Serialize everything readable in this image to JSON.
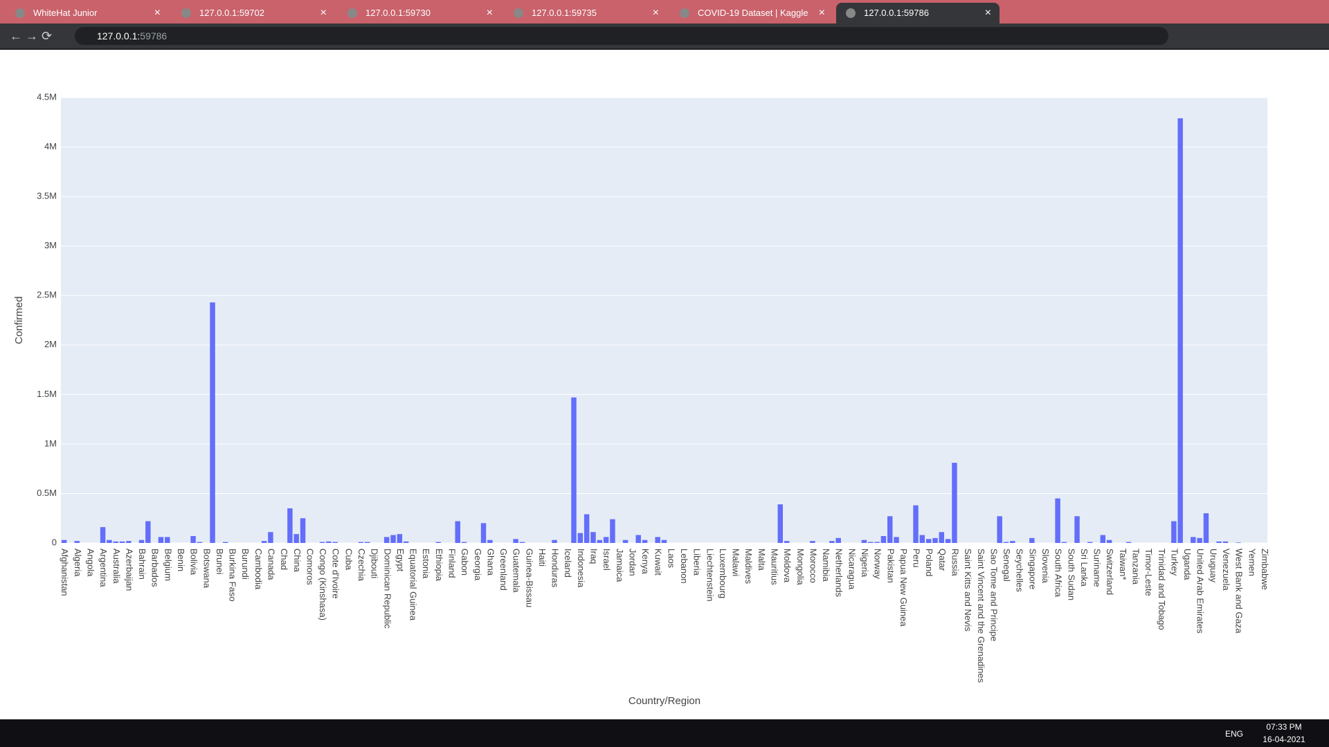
{
  "browser": {
    "tabs": [
      "WhiteHat Junior",
      "127.0.0.1:59702",
      "127.0.0.1:59730",
      "127.0.0.1:59735",
      "COVID-19 Dataset | Kaggle",
      "127.0.0.1:59786"
    ],
    "url_host": "127.0.0.1:",
    "url_port": "59786"
  },
  "taskbar": {
    "language": "ENG",
    "time": "07:33 PM",
    "date": "16-04-2021"
  },
  "chart_data": {
    "type": "bar",
    "color": "#636efa",
    "grid": true,
    "x_label": "Country/Region",
    "y_label": "Confirmed",
    "ylim": [
      0,
      4500000
    ],
    "yticks": [
      0,
      {
        "value": 500000,
        "label": "0.5M"
      },
      {
        "value": 1000000,
        "label": "1M"
      },
      {
        "value": 1500000,
        "label": "1.5M"
      },
      {
        "value": 2000000,
        "label": "2M"
      },
      {
        "value": 2500000,
        "label": "2.5M"
      },
      {
        "value": 3000000,
        "label": "3M"
      },
      {
        "value": 3500000,
        "label": "3.5M"
      },
      {
        "value": 4000000,
        "label": "4M"
      },
      {
        "value": 4500000,
        "label": "4.5M"
      }
    ],
    "categories": [
      "Afghanistan",
      null,
      "Algeria",
      null,
      "Angola",
      null,
      "Argentina",
      null,
      "Australia",
      null,
      "Azerbaijan",
      null,
      "Bahrain",
      null,
      "Barbados",
      null,
      "Belgium",
      null,
      "Benin",
      null,
      "Bolivia",
      null,
      "Botswana",
      null,
      "Brunei",
      null,
      "Burkina Faso",
      null,
      "Burundi",
      null,
      "Cambodia",
      null,
      "Canada",
      null,
      "Chad",
      null,
      "China",
      null,
      "Comoros",
      null,
      "Congo (Kinshasa)",
      null,
      "Cote d'Ivoire",
      null,
      "Cuba",
      null,
      "Czechia",
      null,
      "Djibouti",
      null,
      "Dominican Republic",
      null,
      "Egypt",
      null,
      "Equatorial Guinea",
      null,
      "Estonia",
      null,
      "Ethiopia",
      null,
      "Finland",
      null,
      "Gabon",
      null,
      "Georgia",
      null,
      "Ghana",
      null,
      "Greenland",
      null,
      "Guatemala",
      null,
      "Guinea-Bissau",
      null,
      "Haiti",
      null,
      "Honduras",
      null,
      "Iceland",
      null,
      "Indonesia",
      null,
      "Iraq",
      null,
      "Israel",
      null,
      "Jamaica",
      null,
      "Jordan",
      null,
      "Kenya",
      null,
      "Kuwait",
      null,
      "Laos",
      null,
      "Lebanon",
      null,
      "Liberia",
      null,
      "Liechtenstein",
      null,
      "Luxembourg",
      null,
      "Malawi",
      null,
      "Maldives",
      null,
      "Malta",
      null,
      "Mauritius",
      null,
      "Moldova",
      null,
      "Mongolia",
      null,
      "Morocco",
      null,
      "Namibia",
      null,
      "Netherlands",
      null,
      "Nicaragua",
      null,
      "Nigeria",
      null,
      "Norway",
      null,
      "Pakistan",
      null,
      "Papua New Guinea",
      null,
      "Peru",
      null,
      "Poland",
      null,
      "Qatar",
      null,
      "Russia",
      null,
      "Saint Kitts and Nevis",
      null,
      "Saint Vincent and the Grenadines",
      null,
      "Sao Tome and Principe",
      null,
      "Senegal",
      null,
      "Seychelles",
      null,
      "Singapore",
      null,
      "Slovenia",
      null,
      "South Africa",
      null,
      "South Sudan",
      null,
      "Sri Lanka",
      null,
      "Suriname",
      null,
      "Switzerland",
      null,
      "Taiwan*",
      null,
      "Tanzania",
      null,
      "Timor-Leste",
      null,
      "Trinidad and Tobago",
      null,
      "Turkey",
      null,
      "Uganda",
      null,
      "United Arab Emirates",
      null,
      "Uruguay",
      null,
      "Venezuela",
      null,
      "West Bank and Gaza",
      null,
      "Yemen",
      null,
      "Zimbabwe"
    ],
    "values": [
      30000,
      0,
      20000,
      0,
      0,
      0,
      160000,
      30000,
      15000,
      15000,
      20000,
      0,
      30000,
      220000,
      0,
      60000,
      60000,
      0,
      0,
      0,
      70000,
      10000,
      0,
      2430000,
      0,
      10000,
      0,
      0,
      0,
      0,
      0,
      20000,
      110000,
      0,
      0,
      350000,
      90000,
      250000,
      0,
      0,
      10000,
      15000,
      10000,
      0,
      0,
      0,
      10000,
      10000,
      0,
      0,
      60000,
      80000,
      90000,
      15000,
      0,
      0,
      0,
      0,
      10000,
      0,
      0,
      220000,
      10000,
      0,
      0,
      200000,
      30000,
      0,
      0,
      0,
      40000,
      10000,
      0,
      0,
      0,
      0,
      30000,
      0,
      0,
      1470000,
      100000,
      290000,
      110000,
      30000,
      60000,
      240000,
      0,
      30000,
      0,
      80000,
      30000,
      0,
      60000,
      30000,
      0,
      0,
      0,
      0,
      0,
      0,
      0,
      0,
      0,
      0,
      0,
      0,
      0,
      0,
      0,
      0,
      0,
      390000,
      20000,
      0,
      0,
      0,
      20000,
      0,
      0,
      20000,
      50000,
      0,
      0,
      0,
      30000,
      10000,
      10000,
      70000,
      270000,
      60000,
      0,
      0,
      380000,
      80000,
      40000,
      50000,
      110000,
      40000,
      810000,
      0,
      0,
      0,
      0,
      0,
      0,
      270000,
      10000,
      20000,
      0,
      0,
      50000,
      0,
      0,
      0,
      450000,
      10000,
      0,
      270000,
      0,
      10000,
      0,
      80000,
      30000,
      0,
      0,
      10000,
      0,
      0,
      0,
      0,
      0,
      0,
      220000,
      4290000,
      0,
      60000,
      50000,
      300000,
      0,
      15000,
      15000,
      0,
      5000,
      0,
      0,
      0,
      0
    ]
  }
}
